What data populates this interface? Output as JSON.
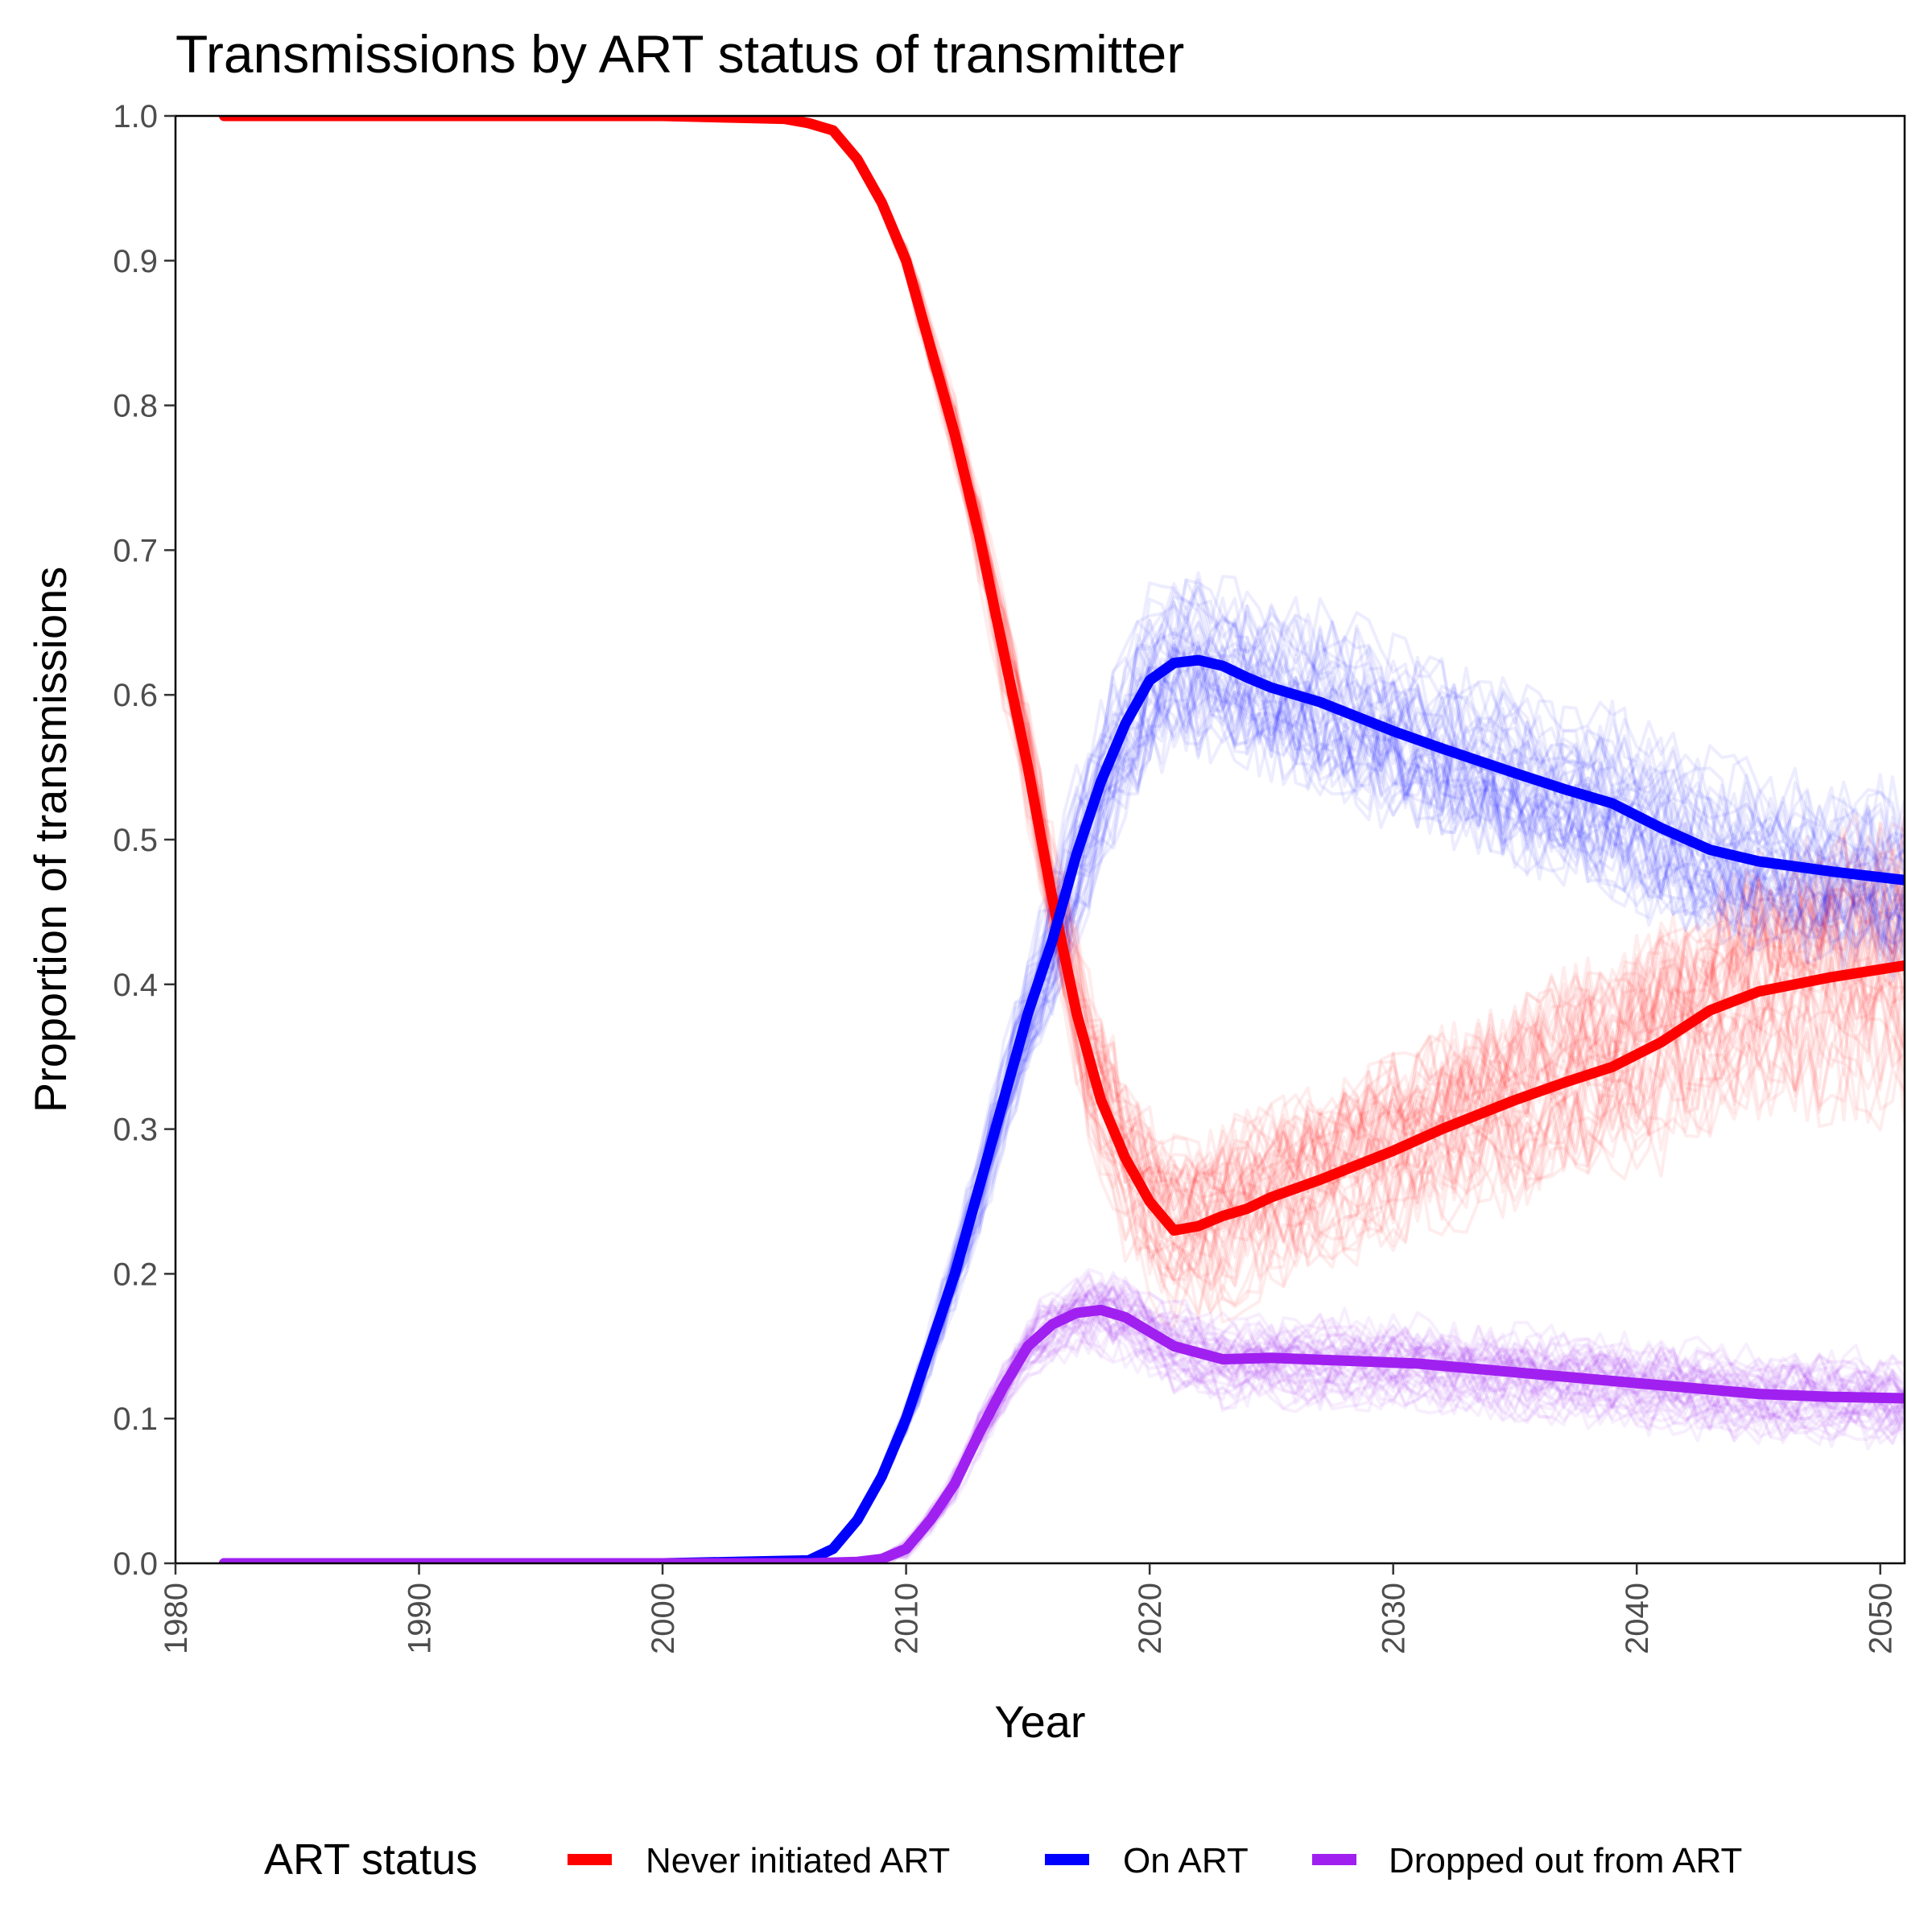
{
  "chart_data": {
    "type": "line",
    "title": "Transmissions by ART status of transmitter",
    "xlabel": "Year",
    "ylabel": "Proportion of transmissions",
    "xlim": [
      1980,
      2051
    ],
    "ylim": [
      0,
      1
    ],
    "x_ticks": [
      "1980",
      "1990",
      "2000",
      "2010",
      "2020",
      "2030",
      "2040",
      "2050"
    ],
    "y_ticks": [
      "0.0",
      "0.1",
      "0.2",
      "0.3",
      "0.4",
      "0.5",
      "0.6",
      "0.7",
      "0.8",
      "0.9",
      "1.0"
    ],
    "grid": false,
    "legend": {
      "title": "ART status",
      "position": "bottom"
    },
    "series": [
      {
        "name": "Never initiated ART",
        "color": "#ff0000",
        "x": [
          1982,
          2000,
          2005,
          2006,
          2007,
          2008,
          2009,
          2010,
          2011,
          2012,
          2013,
          2014,
          2015,
          2016,
          2017,
          2018,
          2019,
          2020,
          2021,
          2022,
          2023,
          2024,
          2025,
          2027,
          2030,
          2032,
          2035,
          2037,
          2039,
          2041,
          2043,
          2045,
          2048,
          2051
        ],
        "y": [
          1.0,
          1.0,
          0.998,
          0.995,
          0.99,
          0.97,
          0.94,
          0.9,
          0.84,
          0.78,
          0.71,
          0.63,
          0.55,
          0.46,
          0.38,
          0.32,
          0.28,
          0.25,
          0.23,
          0.233,
          0.24,
          0.245,
          0.253,
          0.265,
          0.285,
          0.3,
          0.32,
          0.332,
          0.343,
          0.36,
          0.382,
          0.395,
          0.405,
          0.413
        ]
      },
      {
        "name": "On ART",
        "color": "#0000ff",
        "x": [
          1982,
          2000,
          2006,
          2007,
          2008,
          2009,
          2010,
          2011,
          2012,
          2013,
          2014,
          2015,
          2016,
          2017,
          2018,
          2019,
          2020,
          2021,
          2022,
          2023,
          2024,
          2025,
          2027,
          2030,
          2032,
          2035,
          2037,
          2039,
          2041,
          2043,
          2045,
          2048,
          2051
        ],
        "y": [
          0.0,
          0.0,
          0.002,
          0.01,
          0.03,
          0.06,
          0.1,
          0.15,
          0.2,
          0.26,
          0.32,
          0.38,
          0.43,
          0.49,
          0.54,
          0.58,
          0.61,
          0.622,
          0.624,
          0.62,
          0.612,
          0.605,
          0.595,
          0.575,
          0.563,
          0.546,
          0.535,
          0.525,
          0.508,
          0.493,
          0.485,
          0.478,
          0.472
        ]
      },
      {
        "name": "Dropped out from ART",
        "color": "#a020f0",
        "x": [
          1982,
          2000,
          2006,
          2008,
          2009,
          2010,
          2011,
          2012,
          2013,
          2014,
          2015,
          2016,
          2017,
          2018,
          2019,
          2020,
          2021,
          2023,
          2025,
          2028,
          2031,
          2035,
          2039,
          2043,
          2045,
          2048,
          2051
        ],
        "y": [
          0.0,
          0.0,
          0.0,
          0.001,
          0.003,
          0.01,
          0.03,
          0.055,
          0.09,
          0.122,
          0.15,
          0.165,
          0.173,
          0.175,
          0.17,
          0.16,
          0.15,
          0.141,
          0.142,
          0.14,
          0.138,
          0.132,
          0.126,
          0.12,
          0.117,
          0.115,
          0.114
        ]
      }
    ]
  }
}
